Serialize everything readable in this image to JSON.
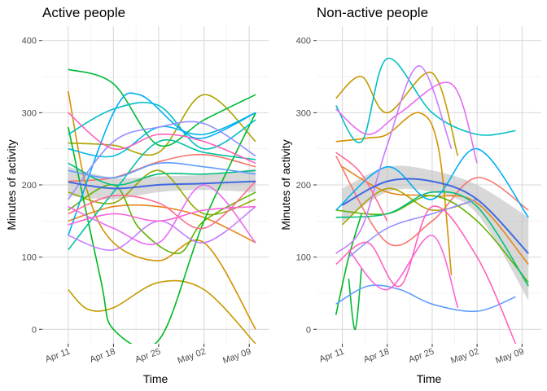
{
  "chart_data": [
    {
      "type": "line",
      "title": "Active people",
      "xlabel": "Time",
      "ylabel": "Minutes of activity",
      "x_ticks": [
        "Apr 11",
        "Apr 18",
        "Apr 25",
        "May 02",
        "May 09"
      ],
      "y_ticks": [
        "0",
        "100",
        "200",
        "300",
        "400"
      ],
      "xlim": [
        "2020-04-07",
        "2020-05-12"
      ],
      "ylim": [
        -20,
        420
      ],
      "grid": true,
      "legend": "none",
      "smooth": {
        "color": "#4169E1",
        "band_color": "#BEBEBE",
        "x": [
          "2020-04-11",
          "2020-04-18",
          "2020-04-25",
          "2020-05-02",
          "2020-05-10"
        ],
        "y": [
          204,
          195,
          200,
          202,
          205
        ],
        "lower": [
          185,
          180,
          190,
          193,
          190
        ],
        "upper": [
          225,
          210,
          212,
          214,
          222
        ]
      },
      "series": [
        {
          "color": "#F8766D",
          "x": [
            "2020-04-11",
            "2020-04-18",
            "2020-04-25",
            "2020-05-02",
            "2020-05-10"
          ],
          "y": [
            205,
            210,
            232,
            242,
            225
          ]
        },
        {
          "color": "#E7861B",
          "x": [
            "2020-04-11",
            "2020-04-18",
            "2020-04-25",
            "2020-05-02",
            "2020-05-10"
          ],
          "y": [
            150,
            170,
            170,
            155,
            120
          ]
        },
        {
          "color": "#D39200",
          "x": [
            "2020-04-11",
            "2020-04-14",
            "2020-04-18",
            "2020-04-25",
            "2020-05-02",
            "2020-05-10"
          ],
          "y": [
            330,
            190,
            120,
            95,
            120,
            0
          ]
        },
        {
          "color": "#C49A00",
          "x": [
            "2020-04-11",
            "2020-04-14",
            "2020-04-18",
            "2020-04-25",
            "2020-05-02",
            "2020-05-10"
          ],
          "y": [
            55,
            28,
            30,
            65,
            55,
            -20
          ]
        },
        {
          "color": "#AEA200",
          "x": [
            "2020-04-11",
            "2020-04-18",
            "2020-04-25",
            "2020-05-02",
            "2020-05-10"
          ],
          "y": [
            258,
            255,
            245,
            325,
            260
          ]
        },
        {
          "color": "#93AA00",
          "x": [
            "2020-04-11",
            "2020-04-18",
            "2020-04-25",
            "2020-05-02",
            "2020-05-10"
          ],
          "y": [
            190,
            175,
            220,
            160,
            180
          ]
        },
        {
          "color": "#5EB300",
          "x": [
            "2020-04-11",
            "2020-04-18",
            "2020-04-22",
            "2020-04-28",
            "2020-05-02",
            "2020-05-10"
          ],
          "y": [
            165,
            200,
            140,
            105,
            150,
            190
          ]
        },
        {
          "color": "#00BA38",
          "x": [
            "2020-04-11",
            "2020-04-18",
            "2020-04-25",
            "2020-05-02",
            "2020-05-10"
          ],
          "y": [
            360,
            340,
            255,
            290,
            325
          ]
        },
        {
          "color": "#00B81F",
          "x": [
            "2020-04-11",
            "2020-04-16",
            "2020-04-18",
            "2020-04-25",
            "2020-05-02",
            "2020-05-10"
          ],
          "y": [
            280,
            70,
            0,
            -15,
            150,
            300
          ]
        },
        {
          "color": "#00BF7D",
          "x": [
            "2020-04-11",
            "2020-04-18",
            "2020-04-25",
            "2020-05-02",
            "2020-05-10"
          ],
          "y": [
            230,
            200,
            215,
            215,
            220
          ]
        },
        {
          "color": "#00C1A3",
          "x": [
            "2020-04-11",
            "2020-04-18",
            "2020-04-25",
            "2020-05-02",
            "2020-05-10"
          ],
          "y": [
            110,
            190,
            260,
            245,
            235
          ]
        },
        {
          "color": "#00BFC4",
          "x": [
            "2020-04-11",
            "2020-04-18",
            "2020-04-25",
            "2020-05-02",
            "2020-05-10"
          ],
          "y": [
            270,
            305,
            310,
            250,
            290
          ]
        },
        {
          "color": "#00B9E3",
          "x": [
            "2020-04-11",
            "2020-04-18",
            "2020-04-25",
            "2020-05-02",
            "2020-05-10"
          ],
          "y": [
            250,
            240,
            280,
            270,
            300
          ]
        },
        {
          "color": "#00ADFA",
          "x": [
            "2020-04-11",
            "2020-04-18",
            "2020-04-22",
            "2020-04-28",
            "2020-05-02",
            "2020-05-10"
          ],
          "y": [
            130,
            300,
            325,
            280,
            265,
            300
          ]
        },
        {
          "color": "#619CFF",
          "x": [
            "2020-04-11",
            "2020-04-18",
            "2020-04-25",
            "2020-05-02",
            "2020-05-10"
          ],
          "y": [
            220,
            210,
            230,
            225,
            215
          ]
        },
        {
          "color": "#9590FF",
          "x": [
            "2020-04-11",
            "2020-04-18",
            "2020-04-25",
            "2020-05-02",
            "2020-05-10"
          ],
          "y": [
            180,
            260,
            280,
            285,
            240
          ]
        },
        {
          "color": "#C77CFF",
          "x": [
            "2020-04-11",
            "2020-04-18",
            "2020-04-25",
            "2020-05-02",
            "2020-05-10"
          ],
          "y": [
            130,
            110,
            150,
            120,
            170
          ]
        },
        {
          "color": "#E76BF3",
          "x": [
            "2020-04-11",
            "2020-04-18",
            "2020-04-25",
            "2020-05-02",
            "2020-05-10"
          ],
          "y": [
            170,
            140,
            120,
            200,
            120
          ]
        },
        {
          "color": "#FA62DB",
          "x": [
            "2020-04-11",
            "2020-04-18",
            "2020-04-25",
            "2020-05-02",
            "2020-05-10"
          ],
          "y": [
            145,
            160,
            150,
            165,
            170
          ]
        },
        {
          "color": "#FF62BC",
          "x": [
            "2020-04-11",
            "2020-04-18",
            "2020-04-25",
            "2020-05-02",
            "2020-05-10"
          ],
          "y": [
            300,
            250,
            270,
            260,
            230
          ]
        },
        {
          "color": "#FF6C91",
          "x": [
            "2020-04-11",
            "2020-04-18",
            "2020-04-25",
            "2020-05-02",
            "2020-05-10"
          ],
          "y": [
            160,
            185,
            175,
            140,
            205
          ]
        }
      ]
    },
    {
      "type": "line",
      "title": "Non-active people",
      "xlabel": "Time",
      "ylabel": "Minutes of activity",
      "x_ticks": [
        "Apr 11",
        "Apr 18",
        "Apr 25",
        "May 02",
        "May 09"
      ],
      "y_ticks": [
        "0",
        "100",
        "200",
        "300",
        "400"
      ],
      "xlim": [
        "2020-04-07",
        "2020-05-12"
      ],
      "ylim": [
        -20,
        420
      ],
      "grid": true,
      "legend": "none",
      "smooth": {
        "color": "#4169E1",
        "band_color": "#BEBEBE",
        "x": [
          "2020-04-11",
          "2020-04-18",
          "2020-04-25",
          "2020-05-02",
          "2020-05-10"
        ],
        "y": [
          172,
          205,
          205,
          180,
          105
        ],
        "lower": [
          148,
          190,
          190,
          160,
          40
        ],
        "upper": [
          195,
          225,
          220,
          200,
          155
        ]
      },
      "series": [
        {
          "color": "#F8766D",
          "x": [
            "2020-04-10",
            "2020-04-18",
            "2020-04-25",
            "2020-05-02",
            "2020-05-10"
          ],
          "y": [
            240,
            120,
            150,
            210,
            165
          ]
        },
        {
          "color": "#E7861B",
          "x": [
            "2020-04-11",
            "2020-04-18",
            "2020-04-25",
            "2020-05-02",
            "2020-05-10"
          ],
          "y": [
            225,
            190,
            185,
            175,
            90
          ]
        },
        {
          "color": "#D39200",
          "x": [
            "2020-04-10",
            "2020-04-15",
            "2020-04-18",
            "2020-04-23",
            "2020-04-26",
            "2020-04-28"
          ],
          "y": [
            260,
            265,
            270,
            300,
            250,
            75
          ]
        },
        {
          "color": "#C49A00",
          "x": [
            "2020-04-10",
            "2020-04-14",
            "2020-04-18",
            "2020-04-25",
            "2020-04-29"
          ],
          "y": [
            320,
            350,
            300,
            355,
            240
          ]
        },
        {
          "color": "#AEA200",
          "x": [
            "2020-04-11",
            "2020-04-18",
            "2020-04-25",
            "2020-05-02"
          ],
          "y": [
            145,
            195,
            165,
            180
          ]
        },
        {
          "color": "#5EB300",
          "x": [
            "2020-04-10",
            "2020-04-18",
            "2020-04-25",
            "2020-05-02",
            "2020-05-10"
          ],
          "y": [
            165,
            160,
            185,
            150,
            65
          ]
        },
        {
          "color": "#00BA38",
          "x": [
            "2020-04-12",
            "2020-04-13",
            "2020-04-14"
          ],
          "y": [
            70,
            0,
            85
          ]
        },
        {
          "color": "#00B81F",
          "x": [
            "2020-04-10",
            "2020-04-12",
            "2020-04-14"
          ],
          "y": [
            20,
            100,
            160
          ]
        },
        {
          "color": "#00BF7D",
          "x": [
            "2020-04-10",
            "2020-04-18",
            "2020-04-25",
            "2020-05-02",
            "2020-05-10"
          ],
          "y": [
            155,
            160,
            190,
            170,
            60
          ]
        },
        {
          "color": "#00BFC4",
          "x": [
            "2020-04-10",
            "2020-04-14",
            "2020-04-18",
            "2020-04-25",
            "2020-05-02",
            "2020-05-08"
          ],
          "y": [
            310,
            260,
            375,
            300,
            270,
            275
          ]
        },
        {
          "color": "#00ADFA",
          "x": [
            "2020-04-10",
            "2020-04-18",
            "2020-04-25",
            "2020-05-02",
            "2020-05-10"
          ],
          "y": [
            165,
            225,
            180,
            250,
            155
          ]
        },
        {
          "color": "#619CFF",
          "x": [
            "2020-04-10",
            "2020-04-15",
            "2020-04-20",
            "2020-04-25",
            "2020-05-02",
            "2020-05-08"
          ],
          "y": [
            35,
            60,
            55,
            35,
            25,
            45
          ]
        },
        {
          "color": "#9590FF",
          "x": [
            "2020-04-12",
            "2020-04-18",
            "2020-04-25",
            "2020-05-02"
          ],
          "y": [
            100,
            140,
            160,
            180
          ]
        },
        {
          "color": "#C77CFF",
          "x": [
            "2020-04-10",
            "2020-04-14",
            "2020-04-18",
            "2020-04-23",
            "2020-04-28"
          ],
          "y": [
            105,
            140,
            255,
            365,
            250
          ]
        },
        {
          "color": "#E76BF3",
          "x": [
            "2020-04-10",
            "2020-04-15",
            "2020-04-20",
            "2020-04-28",
            "2020-05-02"
          ],
          "y": [
            305,
            270,
            300,
            340,
            230
          ]
        },
        {
          "color": "#FA62DB",
          "x": [
            "2020-04-12",
            "2020-04-18",
            "2020-04-25",
            "2020-04-29"
          ],
          "y": [
            110,
            55,
            130,
            30
          ]
        },
        {
          "color": "#FF62BC",
          "x": [
            "2020-04-10",
            "2020-04-15",
            "2020-04-20",
            "2020-04-25",
            "2020-05-02",
            "2020-05-08"
          ],
          "y": [
            90,
            120,
            60,
            170,
            100,
            -20
          ]
        },
        {
          "color": "#FF6C91",
          "x": [
            "2020-04-10",
            "2020-04-14",
            "2020-04-18"
          ],
          "y": [
            245,
            215,
            150
          ]
        }
      ]
    }
  ]
}
